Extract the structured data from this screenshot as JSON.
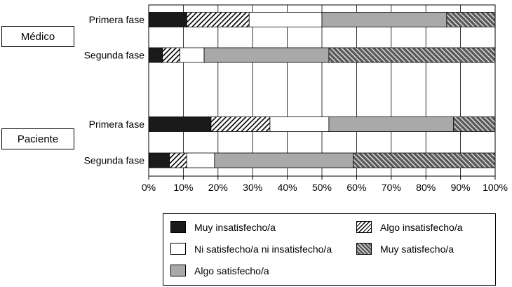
{
  "chart_data": {
    "type": "bar",
    "orientation": "horizontal",
    "stacked": true,
    "percent": true,
    "groups": [
      {
        "label": "Médico",
        "rows": [
          "Primera fase",
          "Segunda fase"
        ]
      },
      {
        "label": "Paciente",
        "rows": [
          "Primera fase",
          "Segunda fase"
        ]
      }
    ],
    "categories": [
      "Primera fase",
      "Segunda fase",
      "Primera fase",
      "Segunda fase"
    ],
    "series": [
      {
        "name": "Muy insatisfecho/a",
        "values": [
          11,
          4,
          18,
          6
        ],
        "color": "#1a1a1a",
        "pattern": "solid"
      },
      {
        "name": "Algo insatisfecho/a",
        "values": [
          18,
          5,
          17,
          5
        ],
        "color": "#ffffff",
        "pattern": "light-hatch"
      },
      {
        "name": "Ni satisfecho/a ni insatisfecho/a",
        "values": [
          21,
          7,
          17,
          8
        ],
        "color": "#ffffff",
        "pattern": "none"
      },
      {
        "name": "Algo satisfecho/a",
        "values": [
          36,
          36,
          36,
          40
        ],
        "color": "#a9a9a9",
        "pattern": "solid"
      },
      {
        "name": "Muy satisfecho/a",
        "values": [
          14,
          48,
          12,
          41
        ],
        "color": "#5a5a5a",
        "pattern": "dark-hatch"
      }
    ],
    "xlim": [
      0,
      100
    ],
    "xticks": [
      "0%",
      "10%",
      "20%",
      "30%",
      "40%",
      "50%",
      "60%",
      "70%",
      "80%",
      "90%",
      "100%"
    ],
    "grid": true,
    "legend_position": "bottom"
  }
}
